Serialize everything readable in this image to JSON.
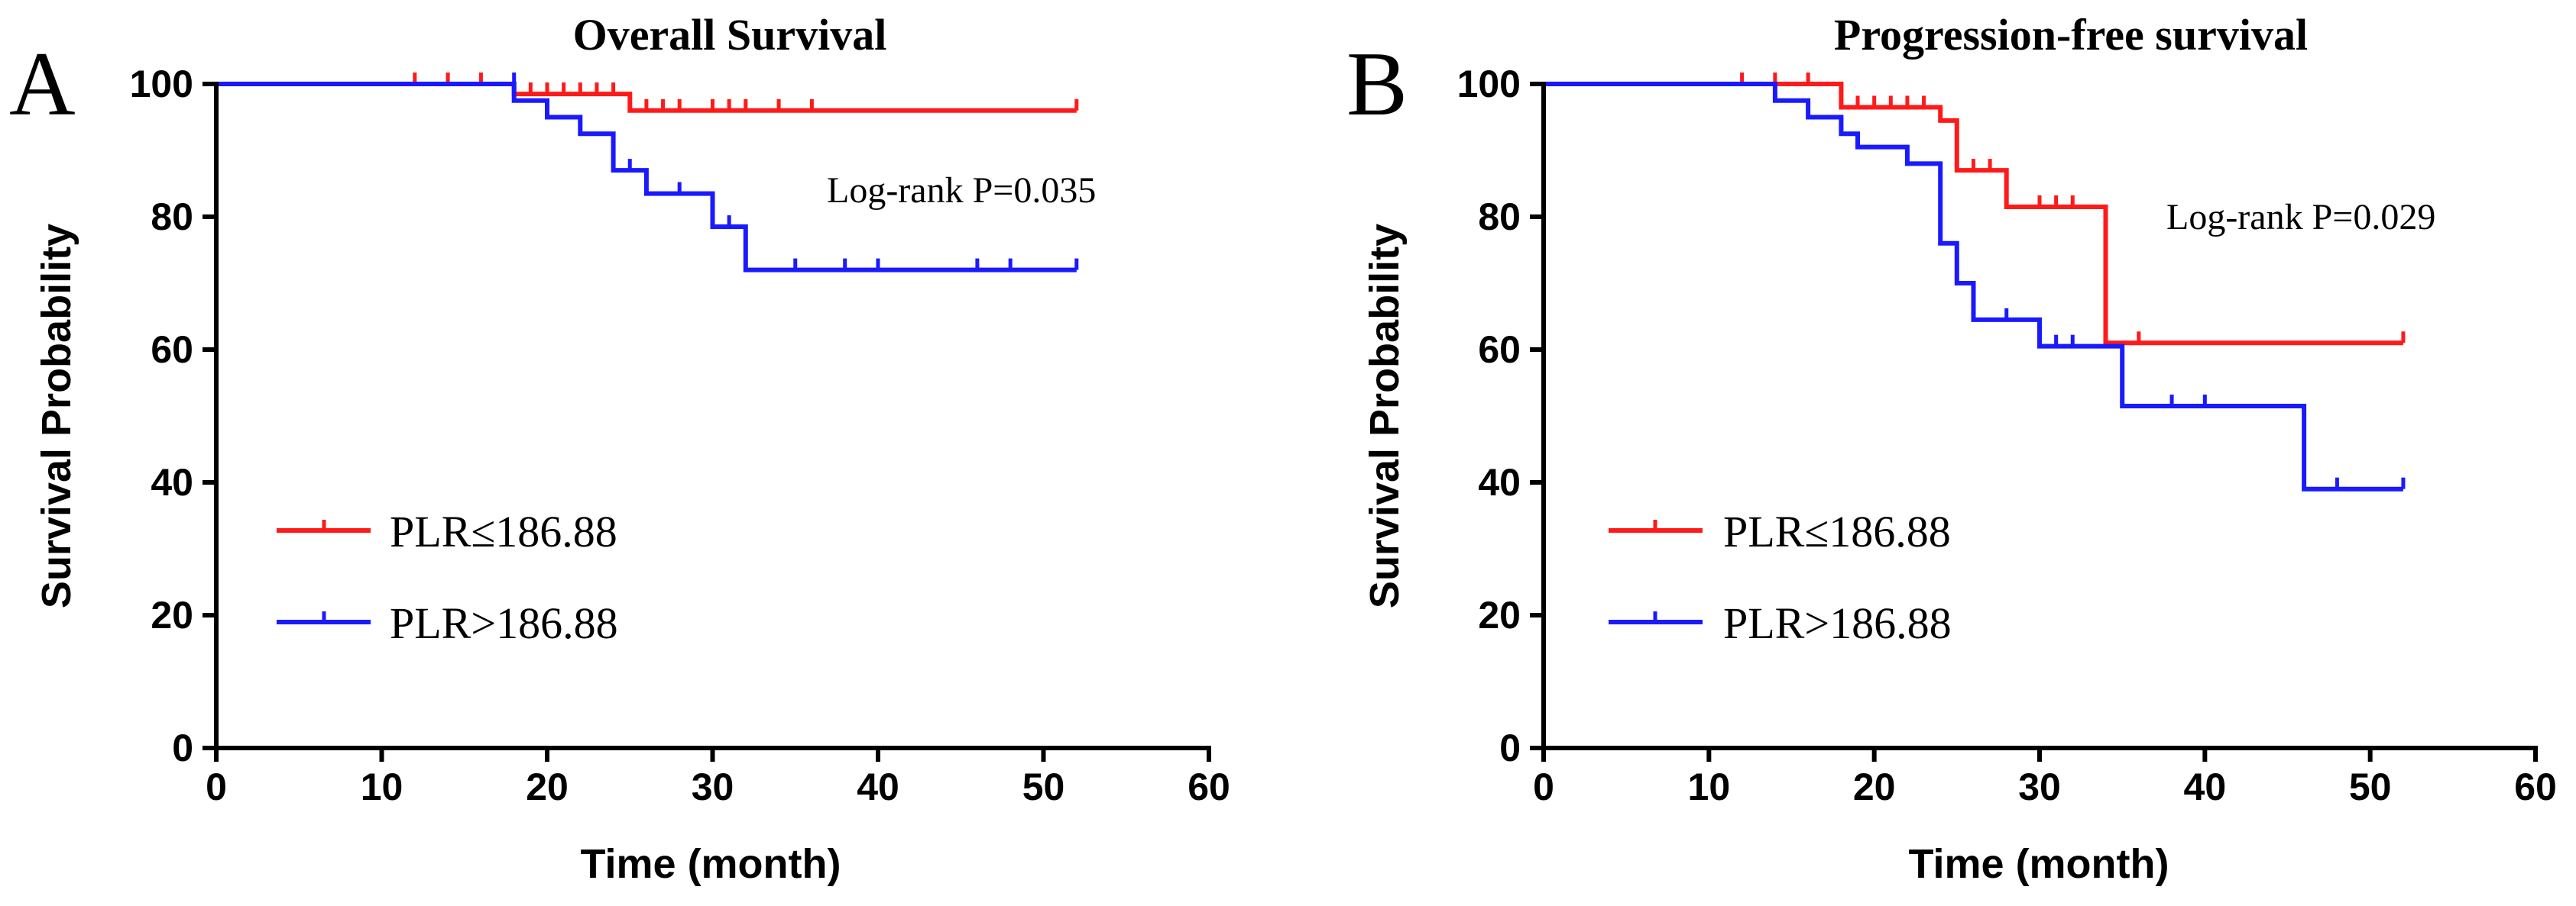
{
  "chart_data": [
    {
      "type": "line",
      "panel": "A",
      "title": "Overall Survival",
      "xlabel": "Time (month)",
      "ylabel": "Survival Probability",
      "xlim": [
        0,
        60
      ],
      "ylim": [
        0,
        100
      ],
      "xticks": [
        "0",
        "10",
        "20",
        "30",
        "40",
        "50",
        "60"
      ],
      "yticks": [
        "0",
        "20",
        "40",
        "60",
        "80",
        "100"
      ],
      "annotation": "Log-rank P=0.035",
      "legend_position": "lower-left",
      "series": [
        {
          "name": "PLR≤186.88",
          "color": "#ff1a1a",
          "steps": [
            [
              0,
              100
            ],
            [
              18,
              100
            ],
            [
              18,
              98.5
            ],
            [
              25,
              98.5
            ],
            [
              25,
              96
            ],
            [
              52,
              96
            ]
          ],
          "censored": [
            [
              12,
              100
            ],
            [
              14,
              100
            ],
            [
              16,
              100
            ],
            [
              19,
              98.5
            ],
            [
              20,
              98.5
            ],
            [
              21,
              98.5
            ],
            [
              22,
              98.5
            ],
            [
              23,
              98.5
            ],
            [
              24,
              98.5
            ],
            [
              26,
              96
            ],
            [
              27,
              96
            ],
            [
              28,
              96
            ],
            [
              30,
              96
            ],
            [
              31,
              96
            ],
            [
              32,
              96
            ],
            [
              34,
              96
            ],
            [
              36,
              96
            ],
            [
              52,
              96
            ]
          ]
        },
        {
          "name": "PLR>186.88",
          "color": "#1a1aff",
          "steps": [
            [
              0,
              100
            ],
            [
              18,
              100
            ],
            [
              18,
              97.5
            ],
            [
              20,
              97.5
            ],
            [
              20,
              95
            ],
            [
              22,
              95
            ],
            [
              22,
              92.5
            ],
            [
              24,
              92.5
            ],
            [
              24,
              87
            ],
            [
              26,
              87
            ],
            [
              26,
              83.5
            ],
            [
              30,
              83.5
            ],
            [
              30,
              78.5
            ],
            [
              32,
              78.5
            ],
            [
              32,
              72
            ],
            [
              52,
              72
            ]
          ],
          "censored": [
            [
              18,
              100
            ],
            [
              25,
              87
            ],
            [
              28,
              83.5
            ],
            [
              31,
              78.5
            ],
            [
              35,
              72
            ],
            [
              38,
              72
            ],
            [
              40,
              72
            ],
            [
              46,
              72
            ],
            [
              48,
              72
            ],
            [
              52,
              72
            ]
          ]
        }
      ]
    },
    {
      "type": "line",
      "panel": "B",
      "title": "Progression-free survival",
      "xlabel": "Time (month)",
      "ylabel": "Survival Probability",
      "xlim": [
        0,
        60
      ],
      "ylim": [
        0,
        100
      ],
      "xticks": [
        "0",
        "10",
        "20",
        "30",
        "40",
        "50",
        "60"
      ],
      "yticks": [
        "0",
        "20",
        "40",
        "60",
        "80",
        "100"
      ],
      "annotation": "Log-rank P=0.029",
      "legend_position": "lower-left",
      "series": [
        {
          "name": "PLR≤186.88",
          "color": "#ff1a1a",
          "steps": [
            [
              0,
              100
            ],
            [
              18,
              100
            ],
            [
              18,
              96.5
            ],
            [
              24,
              96.5
            ],
            [
              24,
              94.5
            ],
            [
              25,
              94.5
            ],
            [
              25,
              87
            ],
            [
              28,
              87
            ],
            [
              28,
              81.5
            ],
            [
              34,
              81.5
            ],
            [
              34,
              61
            ],
            [
              52,
              61
            ]
          ],
          "censored": [
            [
              12,
              100
            ],
            [
              14,
              100
            ],
            [
              16,
              100
            ],
            [
              19,
              96.5
            ],
            [
              20,
              96.5
            ],
            [
              21,
              96.5
            ],
            [
              22,
              96.5
            ],
            [
              23,
              96.5
            ],
            [
              26,
              87
            ],
            [
              27,
              87
            ],
            [
              30,
              81.5
            ],
            [
              31,
              81.5
            ],
            [
              32,
              81.5
            ],
            [
              36,
              61
            ],
            [
              52,
              61
            ]
          ]
        },
        {
          "name": "PLR>186.88",
          "color": "#1a1aff",
          "steps": [
            [
              0,
              100
            ],
            [
              14,
              100
            ],
            [
              14,
              97.5
            ],
            [
              16,
              97.5
            ],
            [
              16,
              95
            ],
            [
              18,
              95
            ],
            [
              18,
              92.5
            ],
            [
              19,
              92.5
            ],
            [
              19,
              90.5
            ],
            [
              22,
              90.5
            ],
            [
              22,
              88
            ],
            [
              24,
              88
            ],
            [
              24,
              76
            ],
            [
              25,
              76
            ],
            [
              25,
              70
            ],
            [
              26,
              70
            ],
            [
              26,
              64.5
            ],
            [
              30,
              64.5
            ],
            [
              30,
              60.5
            ],
            [
              35,
              60.5
            ],
            [
              35,
              51.5
            ],
            [
              46,
              51.5
            ],
            [
              46,
              39
            ],
            [
              52,
              39
            ]
          ],
          "censored": [
            [
              28,
              64.5
            ],
            [
              31,
              60.5
            ],
            [
              32,
              60.5
            ],
            [
              38,
              51.5
            ],
            [
              40,
              51.5
            ],
            [
              48,
              39
            ],
            [
              52,
              39
            ]
          ]
        }
      ]
    }
  ]
}
